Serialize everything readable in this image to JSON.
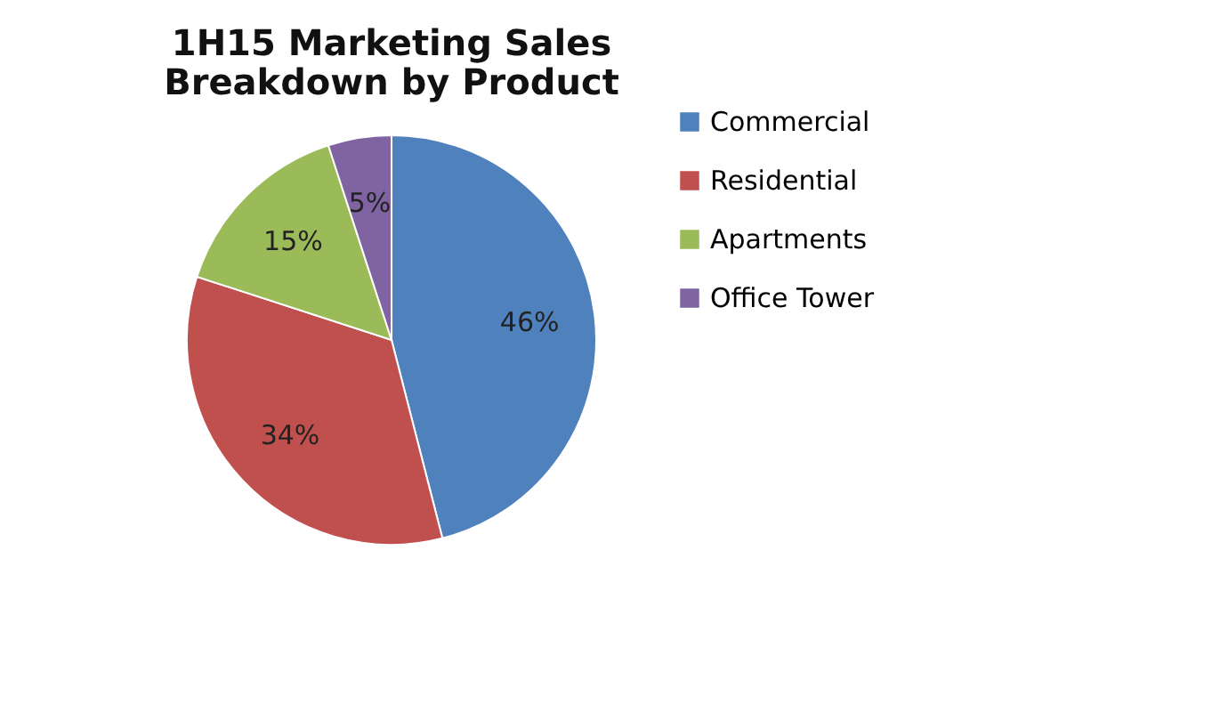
{
  "chart_data": {
    "type": "pie",
    "title": [
      "1H15 Marketing Sales",
      "Breakdown by Product"
    ],
    "categories": [
      "Commercial",
      "Residential",
      "Apartments",
      "Office Tower"
    ],
    "values": [
      46,
      34,
      15,
      5
    ],
    "colors": [
      "#4f81bd",
      "#c0504d",
      "#9bbb59",
      "#8064a2"
    ],
    "value_labels": [
      "46%",
      "34%",
      "15%",
      "5%"
    ],
    "legend": "right"
  }
}
